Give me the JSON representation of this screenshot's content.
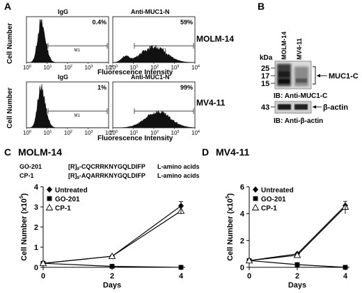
{
  "panels": {
    "A": "A",
    "B": "B",
    "C": "C",
    "D": "D"
  },
  "flow": {
    "ylabel": "Cell Number",
    "xlabel": "Fluorescence Intensity",
    "xticks": [
      "10",
      "10",
      "10",
      "10",
      "10"
    ],
    "xtick_exps": [
      "0",
      "1",
      "2",
      "3",
      "4"
    ],
    "gate": "M1",
    "histograms": [
      {
        "title": "IgG",
        "percent": "0.4%",
        "peak_decade": 0.7,
        "type": "negative"
      },
      {
        "title": "Anti-MUC1-N",
        "percent": "59%",
        "peak_decade": 2.0,
        "type": "broad"
      },
      {
        "title": "IgG",
        "percent": "1%",
        "peak_decade": 0.7,
        "type": "negative"
      },
      {
        "title": "Anti-MUC1-N",
        "percent": "99%",
        "peak_decade": 2.2,
        "type": "broad"
      }
    ],
    "cell_lines": [
      "MOLM-14",
      "MV4-11"
    ]
  },
  "blot": {
    "kda_label": "kDa",
    "lanes": [
      "MOLM-14",
      "MV4-11"
    ],
    "markers": [
      "25",
      "17",
      "15"
    ],
    "band_label": "MUC1-C",
    "ib1": "IB: Anti-MUC1-C",
    "actin_marker": "43",
    "actin_label": "β-actin",
    "ib2_prefix": "IB: Anti-",
    "ib2_greek": "β",
    "ib2_suffix": "-actin"
  },
  "peptides": {
    "rows": [
      {
        "name": "GO-201",
        "prefix": "[R]",
        "sub": "9",
        "seq": "-CQCRRKNYGQLDIFP",
        "note": "L-amino acids"
      },
      {
        "name": "CP-1",
        "prefix": "[R]",
        "sub": "9",
        "seq": "-AQARRKNYGQLDIFP",
        "note": "L-amino acids"
      }
    ]
  },
  "chart_data": [
    {
      "type": "line",
      "title": "MOLM-14",
      "xlabel": "Days",
      "ylabel": "Cell Number (x10⁵)",
      "ylabel_main": "Cell Number (x10",
      "ylabel_exp": "5",
      "ylabel_end": ")",
      "x": [
        0,
        2,
        4
      ],
      "xlim": [
        0,
        4
      ],
      "ylim": [
        0,
        4
      ],
      "yticks": [
        0,
        1,
        2,
        3,
        4
      ],
      "series": [
        {
          "name": "Untreated",
          "marker": "diamond",
          "values": [
            0.2,
            0.55,
            3.05
          ]
        },
        {
          "name": "GO-201",
          "marker": "square",
          "values": [
            0.2,
            0.05,
            0.0
          ]
        },
        {
          "name": "CP-1",
          "marker": "triangle",
          "values": [
            0.2,
            0.55,
            2.8
          ]
        }
      ]
    },
    {
      "type": "line",
      "title": "MV4-11",
      "xlabel": "Days",
      "ylabel": "Cell Number (x10⁵)",
      "ylabel_main": "Cell Number (x10",
      "ylabel_exp": "5",
      "ylabel_end": ")",
      "x": [
        0,
        2,
        4
      ],
      "xlim": [
        0,
        4
      ],
      "ylim": [
        0,
        6
      ],
      "yticks": [
        0,
        2,
        4,
        6
      ],
      "series": [
        {
          "name": "Untreated",
          "marker": "diamond",
          "values": [
            0.5,
            1.0,
            4.6
          ]
        },
        {
          "name": "GO-201",
          "marker": "square",
          "values": [
            0.5,
            0.2,
            0.0
          ]
        },
        {
          "name": "CP-1",
          "marker": "triangle",
          "values": [
            0.5,
            0.9,
            4.5
          ]
        }
      ]
    }
  ]
}
